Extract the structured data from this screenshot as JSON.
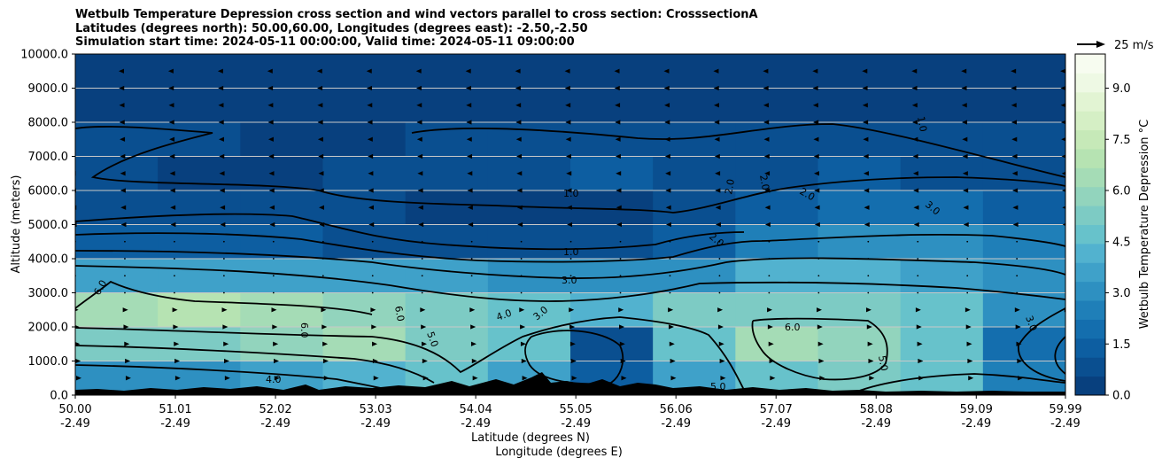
{
  "chart_data": {
    "type": "heatmap",
    "title_lines": [
      "Wetbulb Temperature Depression cross section and wind vectors parallel to cross section: CrosssectionA",
      "Latitudes (degrees north): 50.00,60.00, Longitudes (degrees east): -2.50,-2.50",
      "Simulation start time: 2024-05-11 00:00:00, Valid time: 2024-05-11 09:00:00"
    ],
    "xlabel_lat": "Latitude (degrees N)",
    "xlabel_lon": "Longitude (degrees E)",
    "ylabel": "Altitude (meters)",
    "xlim": [
      50.0,
      59.99
    ],
    "ylim": [
      0,
      10000
    ],
    "x_tick_lat": [
      "50.00",
      "51.01",
      "52.02",
      "53.03",
      "54.04",
      "55.05",
      "56.06",
      "57.07",
      "58.08",
      "59.09",
      "59.99"
    ],
    "x_tick_lon": [
      "-2.49",
      "-2.49",
      "-2.49",
      "-2.49",
      "-2.49",
      "-2.49",
      "-2.49",
      "-2.49",
      "-2.49",
      "-2.49",
      "-2.49"
    ],
    "y_ticks": [
      "0.0",
      "1000.0",
      "2000.0",
      "3000.0",
      "4000.0",
      "5000.0",
      "6000.0",
      "7000.0",
      "8000.0",
      "9000.0",
      "10000.0"
    ],
    "y_tick_values": [
      0,
      1000,
      2000,
      3000,
      4000,
      5000,
      6000,
      7000,
      8000,
      9000,
      10000
    ],
    "colorbar": {
      "label": "Wetbulb Temperature Depression °C",
      "range": [
        0,
        10
      ],
      "ticks": [
        "0.0",
        "1.5",
        "3.0",
        "4.5",
        "6.0",
        "7.5",
        "9.0"
      ],
      "tick_values": [
        0,
        1.5,
        3.0,
        4.5,
        6.0,
        7.5,
        9.0
      ],
      "colors": [
        "#08407e",
        "#0a4f90",
        "#0d5ea1",
        "#146eae",
        "#1f7fb8",
        "#2e90c1",
        "#3fa1c9",
        "#52b2cf",
        "#67c2cb",
        "#7dcbc4",
        "#92d4bd",
        "#a5dcb6",
        "#b6e3b2",
        "#c6e9b8",
        "#d5efc5",
        "#e2f4d3",
        "#eef9e4",
        "#f7fcf0"
      ]
    },
    "wind_reference": "25 m/s",
    "contour_labels": [
      "1.0",
      "1.0",
      "1.0",
      "2.0",
      "2.0",
      "2.0",
      "2.0",
      "3.0",
      "3.0",
      "3.0",
      "3.0",
      "4.0",
      "4.0",
      "5.0",
      "5.0",
      "5.0",
      "6.0",
      "6.0",
      "6.0",
      "6.0"
    ],
    "profile_rows": [
      {
        "altitude": 500,
        "values": [
          3.2,
          3.0,
          3.5,
          4.0,
          4.5,
          3.8,
          1.5,
          3.5,
          4.5,
          5.0,
          4.5,
          2.5
        ]
      },
      {
        "altitude": 1500,
        "values": [
          5.0,
          5.5,
          5.8,
          6.2,
          5.5,
          4.5,
          1.0,
          4.5,
          6.5,
          6.0,
          4.5,
          2.0
        ]
      },
      {
        "altitude": 2500,
        "values": [
          6.5,
          6.8,
          6.5,
          6.0,
          5.0,
          4.5,
          4.0,
          5.5,
          5.5,
          5.0,
          4.5,
          3.0
        ]
      },
      {
        "altitude": 3500,
        "values": [
          3.5,
          3.8,
          3.5,
          3.5,
          3.5,
          3.0,
          3.0,
          3.2,
          4.0,
          4.0,
          3.5,
          2.8
        ]
      },
      {
        "altitude": 4500,
        "values": [
          1.5,
          1.3,
          1.2,
          1.0,
          1.0,
          1.0,
          1.0,
          1.5,
          2.5,
          3.0,
          3.0,
          2.5
        ]
      },
      {
        "altitude": 5500,
        "values": [
          1.0,
          0.8,
          0.7,
          0.6,
          0.5,
          0.5,
          0.5,
          0.8,
          1.5,
          2.0,
          2.0,
          1.5
        ]
      },
      {
        "altitude": 6500,
        "values": [
          0.6,
          0.5,
          0.5,
          0.6,
          0.7,
          1.0,
          1.2,
          1.0,
          1.0,
          1.2,
          1.0,
          0.8
        ]
      },
      {
        "altitude": 7500,
        "values": [
          0.8,
          0.6,
          0.5,
          0.5,
          0.6,
          0.8,
          1.0,
          0.9,
          0.8,
          0.8,
          0.8,
          0.7
        ]
      },
      {
        "altitude": 8500,
        "values": [
          0.5,
          0.4,
          0.4,
          0.4,
          0.4,
          0.4,
          0.5,
          0.5,
          0.5,
          0.5,
          0.5,
          0.5
        ]
      },
      {
        "altitude": 9500,
        "values": [
          0.2,
          0.2,
          0.2,
          0.2,
          0.2,
          0.2,
          0.2,
          0.2,
          0.2,
          0.2,
          0.2,
          0.2
        ]
      }
    ]
  }
}
